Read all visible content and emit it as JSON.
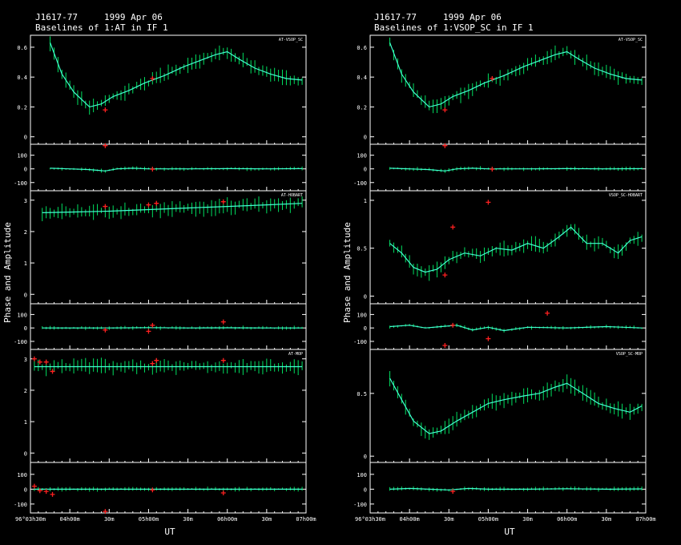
{
  "columns": [
    {
      "source": "J1617-77",
      "date": "1999 Apr 06",
      "subtitle": "Baselines of 1:AT in IF 1",
      "ylabel": "Phase and Amplitude",
      "xlabel": "UT",
      "x_ticks": [
        "96°03h30m",
        "04h00m",
        "30m",
        "05h00m",
        "30m",
        "06h00m",
        "30m",
        "07h00m"
      ]
    },
    {
      "source": "J1617-77",
      "date": "1999 Apr 06",
      "subtitle": "Baselines of 1:VSOP_SC in IF 1",
      "ylabel": "Phase and Amplitude",
      "xlabel": "UT",
      "x_ticks": [
        "96°03h30m",
        "04h00m",
        "30m",
        "05h00m",
        "30m",
        "06h00m",
        "30m",
        "07h00m"
      ]
    }
  ],
  "colors": {
    "background": "#000000",
    "axes": "#ffffff",
    "data_bars": "#00e060",
    "model": "#40ffd0",
    "flagged": "#ff2020"
  },
  "chart_data": [
    {
      "type": "line",
      "baseline": "AT-VSOP_SC",
      "x_unit": "UT (hours)",
      "x_range": [
        3.5,
        7.0
      ],
      "amplitude": {
        "ylim": [
          -0.05,
          0.68
        ],
        "yticks": [
          0,
          0.2,
          0.4,
          0.6
        ],
        "x": [
          3.75,
          3.9,
          4.05,
          4.25,
          4.4,
          4.55,
          4.75,
          4.95,
          5.2,
          5.45,
          5.65,
          5.85,
          6.0,
          6.15,
          6.35,
          6.55,
          6.75,
          6.95
        ],
        "y": [
          0.63,
          0.42,
          0.3,
          0.2,
          0.22,
          0.27,
          0.31,
          0.36,
          0.41,
          0.47,
          0.51,
          0.55,
          0.57,
          0.52,
          0.46,
          0.42,
          0.39,
          0.38
        ],
        "flagged": [
          [
            4.45,
            0.18
          ],
          [
            5.05,
            0.39
          ]
        ]
      },
      "phase": {
        "ylim": [
          -160,
          180
        ],
        "yticks": [
          -100,
          0,
          100
        ],
        "x": [
          3.75,
          4.0,
          4.25,
          4.45,
          4.6,
          4.8,
          5.0,
          5.5,
          6.0,
          6.5,
          6.95
        ],
        "y": [
          5,
          0,
          -5,
          -15,
          0,
          5,
          0,
          0,
          2,
          0,
          2
        ],
        "flagged": [
          [
            4.45,
            170
          ],
          [
            5.05,
            -2
          ]
        ]
      }
    },
    {
      "type": "line",
      "baseline": "AT-HOBART",
      "x_unit": "UT (hours)",
      "x_range": [
        3.5,
        7.0
      ],
      "amplitude": {
        "ylim": [
          -0.3,
          3.3
        ],
        "yticks": [
          0,
          1,
          2,
          3
        ],
        "x": [
          3.65,
          4.0,
          4.5,
          5.0,
          5.5,
          6.0,
          6.5,
          6.95
        ],
        "y": [
          2.6,
          2.62,
          2.65,
          2.7,
          2.75,
          2.8,
          2.85,
          2.9
        ],
        "flagged": [
          [
            4.45,
            2.8
          ],
          [
            5.0,
            2.85
          ],
          [
            5.1,
            2.9
          ],
          [
            5.95,
            2.95
          ]
        ]
      },
      "phase": {
        "ylim": [
          -160,
          180
        ],
        "yticks": [
          -100,
          0,
          100
        ],
        "x": [
          3.65,
          4.0,
          4.5,
          5.0,
          5.5,
          6.0,
          6.5,
          6.95
        ],
        "y": [
          0,
          0,
          0,
          2,
          0,
          1,
          0,
          0
        ],
        "flagged": [
          [
            4.45,
            -15
          ],
          [
            5.0,
            -25
          ],
          [
            5.05,
            20
          ],
          [
            5.95,
            45
          ]
        ]
      }
    },
    {
      "type": "line",
      "baseline": "AT-MOP",
      "x_unit": "UT (hours)",
      "x_range": [
        3.5,
        7.0
      ],
      "amplitude": {
        "ylim": [
          -0.3,
          3.3
        ],
        "yticks": [
          0,
          1,
          2,
          3
        ],
        "x": [
          3.55,
          4.0,
          4.5,
          5.0,
          5.5,
          6.0,
          6.5,
          6.95
        ],
        "y": [
          2.75,
          2.75,
          2.75,
          2.75,
          2.75,
          2.75,
          2.75,
          2.75
        ],
        "flagged": [
          [
            3.55,
            3.0
          ],
          [
            3.62,
            2.9
          ],
          [
            3.7,
            2.9
          ],
          [
            3.78,
            2.6
          ],
          [
            5.05,
            2.85
          ],
          [
            5.1,
            2.95
          ],
          [
            5.95,
            2.95
          ]
        ]
      },
      "phase": {
        "ylim": [
          -160,
          180
        ],
        "yticks": [
          -100,
          0,
          100
        ],
        "x": [
          3.55,
          4.0,
          4.5,
          5.0,
          5.5,
          6.0,
          6.5,
          6.95
        ],
        "y": [
          0,
          0,
          0,
          0,
          0,
          0,
          0,
          0
        ],
        "flagged": [
          [
            3.55,
            20
          ],
          [
            3.62,
            -10
          ],
          [
            3.7,
            -15
          ],
          [
            3.78,
            -35
          ],
          [
            4.45,
            -150
          ],
          [
            5.05,
            -5
          ],
          [
            5.95,
            -25
          ]
        ]
      }
    },
    {
      "type": "line",
      "baseline": "AT-VSOP_SC",
      "x_unit": "UT (hours)",
      "x_range": [
        3.5,
        7.0
      ],
      "amplitude": {
        "ylim": [
          -0.05,
          0.68
        ],
        "yticks": [
          0,
          0.2,
          0.4,
          0.6
        ],
        "x": [
          3.75,
          3.9,
          4.05,
          4.25,
          4.4,
          4.55,
          4.75,
          4.95,
          5.2,
          5.45,
          5.65,
          5.85,
          6.0,
          6.15,
          6.35,
          6.55,
          6.75,
          6.95
        ],
        "y": [
          0.63,
          0.42,
          0.3,
          0.2,
          0.22,
          0.27,
          0.31,
          0.36,
          0.41,
          0.47,
          0.51,
          0.55,
          0.57,
          0.52,
          0.46,
          0.42,
          0.39,
          0.38
        ],
        "flagged": [
          [
            4.45,
            0.18
          ],
          [
            5.05,
            0.39
          ]
        ]
      },
      "phase": {
        "ylim": [
          -160,
          180
        ],
        "yticks": [
          -100,
          0,
          100
        ],
        "x": [
          3.75,
          4.0,
          4.25,
          4.45,
          4.6,
          4.8,
          5.0,
          5.5,
          6.0,
          6.5,
          6.95
        ],
        "y": [
          5,
          0,
          -5,
          -15,
          0,
          5,
          0,
          0,
          2,
          0,
          2
        ],
        "flagged": [
          [
            4.45,
            170
          ],
          [
            5.05,
            -2
          ]
        ]
      }
    },
    {
      "type": "line",
      "baseline": "VSOP_SC-HOBART",
      "x_unit": "UT (hours)",
      "x_range": [
        3.5,
        7.0
      ],
      "amplitude": {
        "ylim": [
          -0.08,
          1.1
        ],
        "yticks": [
          0,
          0.5,
          1
        ],
        "x": [
          3.75,
          3.9,
          4.05,
          4.2,
          4.35,
          4.5,
          4.7,
          4.9,
          5.1,
          5.3,
          5.5,
          5.7,
          5.9,
          6.05,
          6.25,
          6.45,
          6.65,
          6.8,
          6.95
        ],
        "y": [
          0.55,
          0.45,
          0.3,
          0.25,
          0.28,
          0.38,
          0.45,
          0.42,
          0.5,
          0.48,
          0.55,
          0.5,
          0.62,
          0.72,
          0.55,
          0.55,
          0.45,
          0.58,
          0.62
        ],
        "flagged": [
          [
            4.45,
            0.22
          ],
          [
            4.55,
            0.72
          ],
          [
            5.0,
            0.98
          ]
        ]
      },
      "phase": {
        "ylim": [
          -160,
          180
        ],
        "yticks": [
          -100,
          0,
          100
        ],
        "x": [
          3.75,
          4.0,
          4.2,
          4.4,
          4.6,
          4.8,
          5.0,
          5.2,
          5.5,
          6.0,
          6.5,
          6.95
        ],
        "y": [
          10,
          20,
          0,
          10,
          20,
          -15,
          5,
          -20,
          5,
          0,
          10,
          0
        ],
        "flagged": [
          [
            4.45,
            -130
          ],
          [
            4.55,
            20
          ],
          [
            5.0,
            -80
          ],
          [
            5.75,
            110
          ]
        ]
      }
    },
    {
      "type": "line",
      "baseline": "VSOP_SC-MOP",
      "x_unit": "UT (hours)",
      "x_range": [
        3.5,
        7.0
      ],
      "amplitude": {
        "ylim": [
          -0.05,
          0.85
        ],
        "yticks": [
          0,
          0.5
        ],
        "x": [
          3.75,
          3.9,
          4.05,
          4.25,
          4.4,
          4.6,
          4.8,
          5.0,
          5.2,
          5.45,
          5.65,
          5.85,
          6.0,
          6.2,
          6.4,
          6.6,
          6.8,
          6.95
        ],
        "y": [
          0.62,
          0.45,
          0.28,
          0.18,
          0.2,
          0.28,
          0.35,
          0.42,
          0.45,
          0.48,
          0.5,
          0.55,
          0.58,
          0.5,
          0.42,
          0.38,
          0.35,
          0.4
        ],
        "flagged": []
      },
      "phase": {
        "ylim": [
          -160,
          180
        ],
        "yticks": [
          -100,
          0,
          100
        ],
        "x": [
          3.75,
          4.0,
          4.25,
          4.5,
          4.75,
          5.0,
          5.5,
          6.0,
          6.5,
          6.95
        ],
        "y": [
          0,
          5,
          0,
          -5,
          5,
          0,
          0,
          3,
          0,
          2
        ],
        "flagged": [
          [
            4.55,
            -15
          ]
        ]
      }
    }
  ]
}
